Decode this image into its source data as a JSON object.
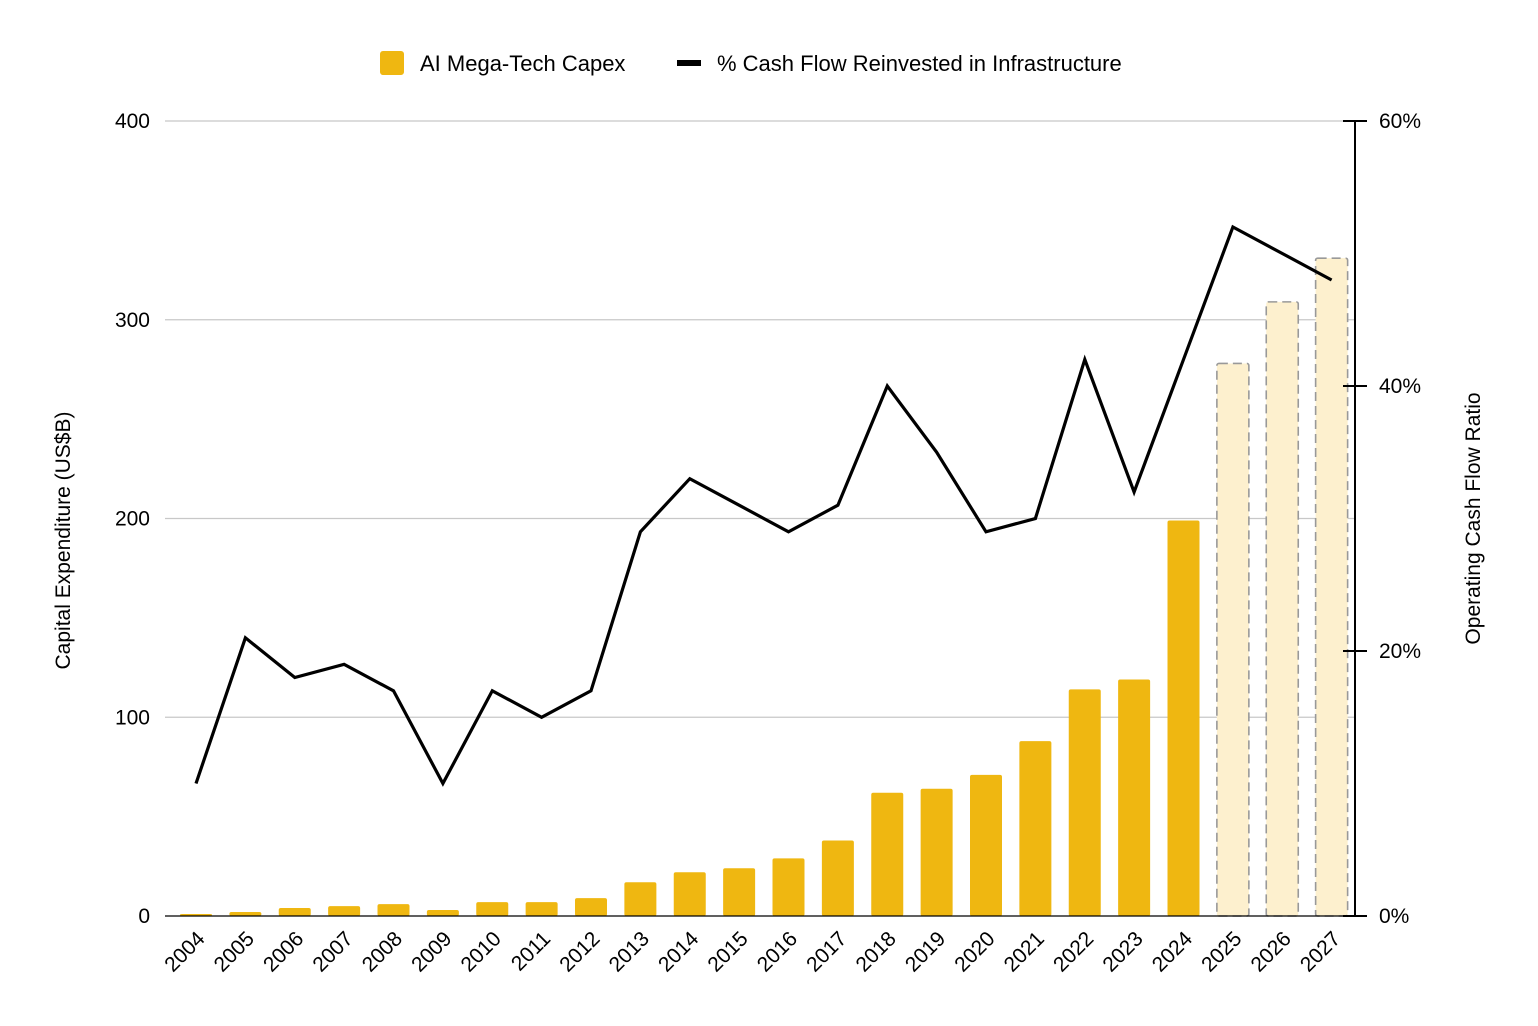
{
  "chart_data": {
    "type": "bar",
    "categories": [
      "2004",
      "2005",
      "2006",
      "2007",
      "2008",
      "2009",
      "2010",
      "2011",
      "2012",
      "2013",
      "2014",
      "2015",
      "2016",
      "2017",
      "2018",
      "2019",
      "2020",
      "2021",
      "2022",
      "2023",
      "2024",
      "2025",
      "2026",
      "2027"
    ],
    "series": [
      {
        "name": "AI Mega-Tech Capex",
        "type": "bar",
        "axis": "left",
        "values": [
          1,
          2,
          4,
          5,
          6,
          3,
          7,
          7,
          9,
          17,
          22,
          24,
          29,
          38,
          62,
          64,
          71,
          88,
          114,
          119,
          199,
          278,
          309,
          331
        ],
        "projected_from": "2025"
      },
      {
        "name": "% Cash Flow Reinvested in Infrastructure",
        "type": "line",
        "axis": "right",
        "values": [
          10,
          21,
          18,
          19,
          17,
          10,
          17,
          15,
          17,
          29,
          33,
          31,
          29,
          31,
          40,
          35,
          29,
          30,
          42,
          32,
          42,
          52,
          50,
          48
        ]
      }
    ],
    "ylabel": "Capital Expenditure (US$B)",
    "y2label": "Operating Cash Flow Ratio",
    "ylim": [
      0,
      400
    ],
    "y2lim": [
      0,
      60
    ],
    "yticks": [
      "0",
      "100",
      "200",
      "300",
      "400"
    ],
    "y2ticks": [
      "0%",
      "20%",
      "40%",
      "60%"
    ],
    "grid": true,
    "legend_position": "top-center",
    "colors": {
      "bar": "#EFB711",
      "bar_projected": "#FDF0CE",
      "bar_projected_border": "#999999",
      "line": "#000000",
      "grid": "#C8C8C8"
    }
  }
}
